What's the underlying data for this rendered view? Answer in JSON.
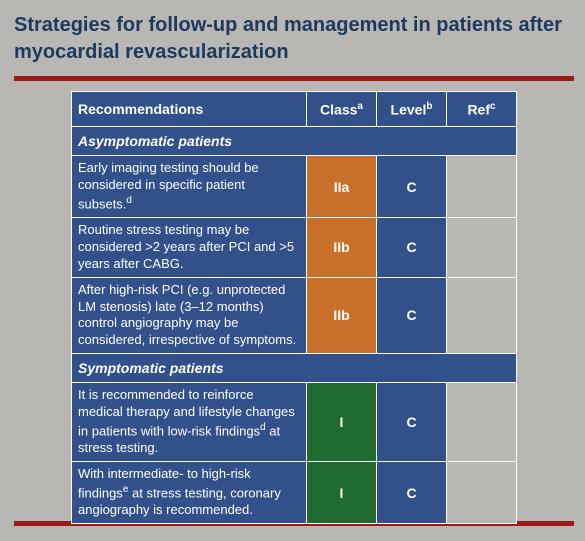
{
  "title": "Strategies for follow-up and management in patients after myocardial revascularization",
  "colors": {
    "page_bg": "#b8b7b4",
    "frame_border": "#9a1a1a",
    "header_bg": "#32508a",
    "header_fg": "#ffffff",
    "section_bg": "#32508a",
    "rec_bg": "#32508a",
    "level_bg": "#32508a",
    "ref_bg_blank": "#b8b7b4",
    "class_IIa": "#c86f2a",
    "class_IIb": "#c86f2a",
    "class_I": "#1f6b2f",
    "ref_bg": "#b8b7b4"
  },
  "headers": {
    "rec": "Recommendations",
    "class": "Class",
    "class_sup": "a",
    "level": "Level",
    "level_sup": "b",
    "ref": "Ref",
    "ref_sup": "c"
  },
  "groups": [
    {
      "label": "Asymptomatic patients",
      "rows": [
        {
          "text_pre": "Early imaging testing should be considered in specific patient subsets.",
          "text_sup": "d",
          "text_post": "",
          "class": "IIa",
          "class_color_key": "class_IIa",
          "level": "C",
          "ref": "",
          "ref_bg_key": "ref_bg_blank"
        },
        {
          "text_pre": "Routine stress testing may be considered >2 years after PCI and >5 years after CABG.",
          "text_sup": "",
          "text_post": "",
          "class": "IIb",
          "class_color_key": "class_IIb",
          "level": "C",
          "ref": "",
          "ref_bg_key": "ref_bg_blank"
        },
        {
          "text_pre": "After high-risk PCI (e.g. unprotected LM stenosis) late (3–12 months) control angiography may be considered, irrespective of symptoms.",
          "text_sup": "",
          "text_post": "",
          "class": "IIb",
          "class_color_key": "class_IIb",
          "level": "C",
          "ref": "",
          "ref_bg_key": "ref_bg_blank"
        }
      ]
    },
    {
      "label": "Symptomatic patients",
      "rows": [
        {
          "text_pre": "It is recommended to reinforce medical therapy and lifestyle changes in patients with low-risk findings",
          "text_sup": "d",
          "text_post": " at stress testing.",
          "class": "I",
          "class_color_key": "class_I",
          "level": "C",
          "ref": "",
          "ref_bg_key": "ref_bg_blank"
        },
        {
          "text_pre": "With intermediate- to high-risk findings",
          "text_sup": "e",
          "text_post": " at stress testing, coronary angiography is recommended.",
          "class": "I",
          "class_color_key": "class_I",
          "level": "C",
          "ref": "",
          "ref_bg_key": "ref_bg_blank"
        }
      ]
    }
  ]
}
